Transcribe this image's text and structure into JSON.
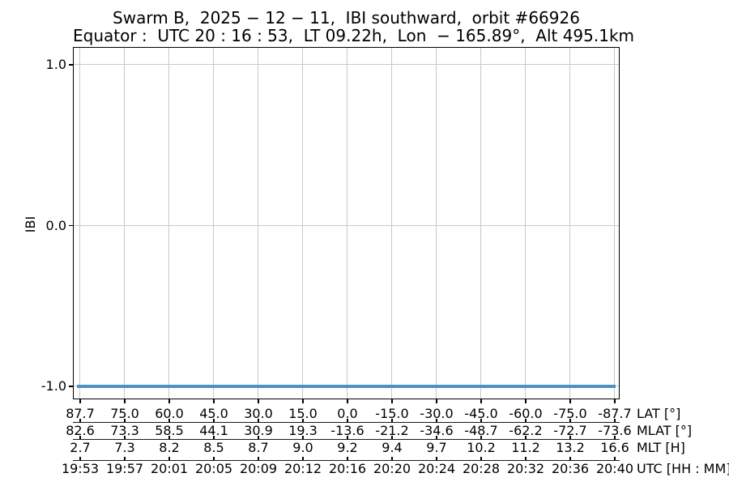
{
  "chart_data": {
    "type": "line",
    "title": "Swarm B,  2025 − 12 − 11,  IBI southward,  orbit #66926",
    "subtitle": "Equator :  UTC 20 : 16 : 53,  LT 09.22h,  Lon  − 165.89°,  Alt 495.1km",
    "ylabel": "IBI",
    "ylim": [
      -1.1,
      1.1
    ],
    "grid": true,
    "legend": "none",
    "yticks": [
      {
        "value": 1.0,
        "label": "1.0"
      },
      {
        "value": 0.0,
        "label": "0.0"
      },
      {
        "value": -1.0,
        "label": "-1.0"
      }
    ],
    "series": [
      {
        "name": "IBI flag",
        "color": "#4c92c3",
        "value": -1.0,
        "description": "constant value −1.0 across the entire orbit segment"
      }
    ],
    "x_axes": [
      {
        "label": "LAT [°]",
        "values": [
          "87.7",
          "75.0",
          "60.0",
          "45.0",
          "30.0",
          "15.0",
          "0.0",
          "-15.0",
          "-30.0",
          "-45.0",
          "-60.0",
          "-75.0",
          "-87.7"
        ]
      },
      {
        "label": "MLAT [°]",
        "values": [
          "82.6",
          "73.3",
          "58.5",
          "44.1",
          "30.9",
          "19.3",
          "-13.6",
          "-21.2",
          "-34.6",
          "-48.7",
          "-62.2",
          "-72.7",
          "-73.6"
        ]
      },
      {
        "label": "MLT [H]",
        "values": [
          "2.7",
          "7.3",
          "8.2",
          "8.5",
          "8.7",
          "9.0",
          "9.2",
          "9.4",
          "9.7",
          "10.2",
          "11.2",
          "13.2",
          "16.6"
        ]
      },
      {
        "label": "UTC [HH : MM]",
        "values": [
          "19:53",
          "19:57",
          "20:01",
          "20:05",
          "20:09",
          "20:12",
          "20:16",
          "20:20",
          "20:24",
          "20:28",
          "20:32",
          "20:36",
          "20:40"
        ]
      }
    ]
  }
}
